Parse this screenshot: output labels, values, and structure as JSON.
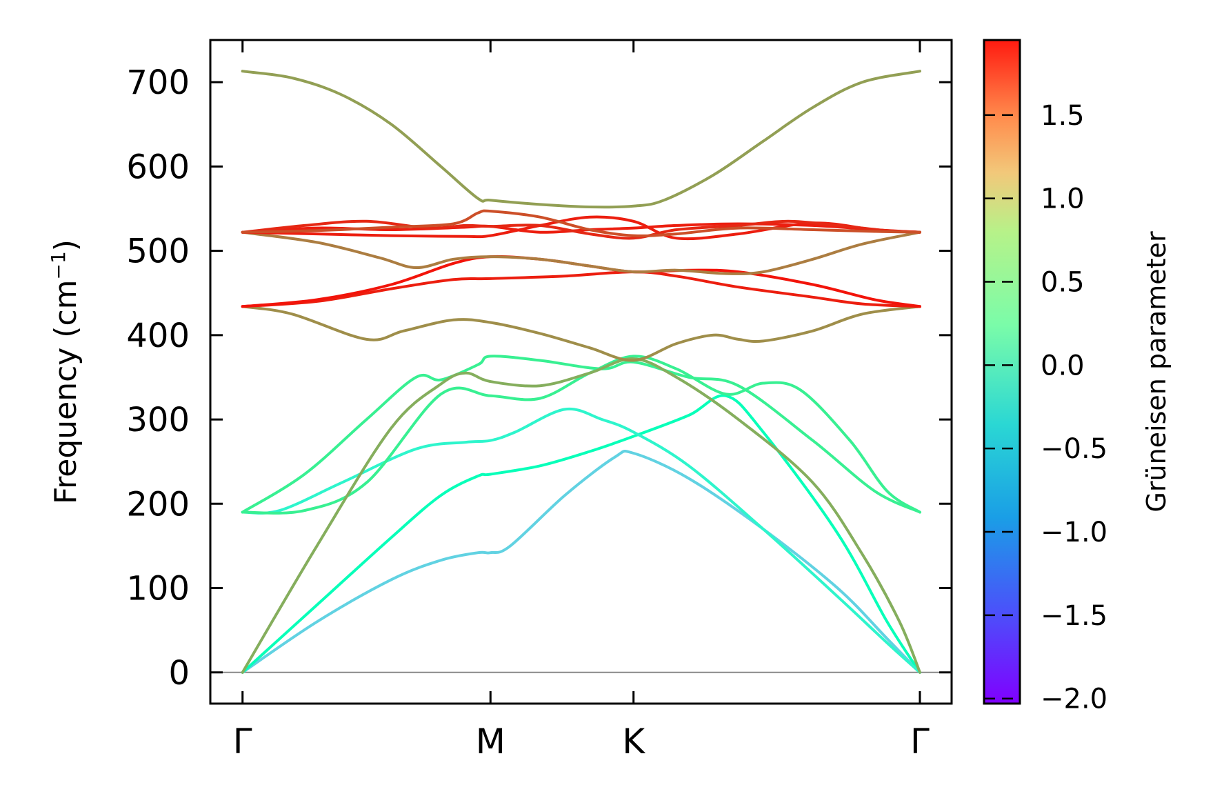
{
  "chart_data": {
    "type": "line",
    "ylabel": "Frequency (cm",
    "ylabel_sup": "−1",
    "ylabel_tail": ")",
    "ylim": [
      -37,
      750
    ],
    "yticks": [
      0,
      100,
      200,
      300,
      400,
      500,
      600,
      700
    ],
    "ytick_labels": [
      "0",
      "100",
      "200",
      "300",
      "400",
      "500",
      "600",
      "700"
    ],
    "xticks": [
      {
        "label": "Γ",
        "x": 0.0
      },
      {
        "label": "M",
        "x": 1.0
      },
      {
        "label": "K",
        "x": 1.577
      },
      {
        "label": "Γ",
        "x": 2.732
      }
    ],
    "xlim": [
      -0.13,
      2.86
    ],
    "zero_line": true,
    "colorbar": {
      "title": "Grüneisen parameter",
      "vmin": -2.03,
      "vmax": 1.95,
      "ticks": [
        -2.0,
        -1.5,
        -1.0,
        -0.5,
        0.0,
        0.5,
        1.0,
        1.5
      ],
      "tick_labels": [
        "−2.0",
        "−1.5",
        "−1.0",
        "−0.5",
        "0.0",
        "0.5",
        "1.0",
        "1.5"
      ],
      "colormap": "rainbow"
    },
    "series": [
      {
        "gamma": -0.8,
        "points": [
          [
            0,
            0
          ],
          [
            0.3,
            60
          ],
          [
            0.6,
            110
          ],
          [
            0.8,
            133
          ],
          [
            0.95,
            142
          ],
          [
            1.0,
            142
          ],
          [
            1.08,
            150
          ],
          [
            1.3,
            210
          ],
          [
            1.5,
            255
          ],
          [
            1.577,
            260
          ],
          [
            1.8,
            230
          ],
          [
            2.1,
            170
          ],
          [
            2.4,
            100
          ],
          [
            2.6,
            40
          ],
          [
            2.732,
            0
          ]
        ]
      },
      {
        "gamma": -0.1,
        "points": [
          [
            0,
            0
          ],
          [
            0.3,
            80
          ],
          [
            0.6,
            160
          ],
          [
            0.8,
            210
          ],
          [
            0.95,
            233
          ],
          [
            1.0,
            235
          ],
          [
            1.2,
            245
          ],
          [
            1.4,
            262
          ],
          [
            1.577,
            280
          ],
          [
            1.8,
            305
          ],
          [
            1.95,
            328
          ],
          [
            2.1,
            285
          ],
          [
            2.4,
            165
          ],
          [
            2.6,
            60
          ],
          [
            2.732,
            0
          ]
        ]
      },
      {
        "gamma": -0.4,
        "points": [
          [
            0,
            190
          ],
          [
            0.15,
            192
          ],
          [
            0.4,
            225
          ],
          [
            0.7,
            265
          ],
          [
            0.9,
            273
          ],
          [
            1.0,
            275
          ],
          [
            1.1,
            285
          ],
          [
            1.3,
            312
          ],
          [
            1.45,
            300
          ],
          [
            1.577,
            285
          ],
          [
            1.8,
            245
          ],
          [
            2.1,
            170
          ],
          [
            2.4,
            90
          ],
          [
            2.6,
            35
          ],
          [
            2.732,
            0
          ]
        ]
      },
      {
        "gamma": 0.4,
        "points": [
          [
            0,
            190
          ],
          [
            0.25,
            235
          ],
          [
            0.5,
            300
          ],
          [
            0.7,
            350
          ],
          [
            0.8,
            347
          ],
          [
            0.95,
            365
          ],
          [
            1.0,
            375
          ],
          [
            1.2,
            370
          ],
          [
            1.45,
            360
          ],
          [
            1.577,
            368
          ],
          [
            1.8,
            350
          ],
          [
            2.0,
            340
          ],
          [
            2.3,
            275
          ],
          [
            2.55,
            215
          ],
          [
            2.732,
            190
          ]
        ]
      },
      {
        "gamma": 0.4,
        "points": [
          [
            0,
            190
          ],
          [
            0.25,
            192
          ],
          [
            0.5,
            225
          ],
          [
            0.8,
            330
          ],
          [
            1.0,
            328
          ],
          [
            1.2,
            325
          ],
          [
            1.4,
            355
          ],
          [
            1.577,
            375
          ],
          [
            1.75,
            360
          ],
          [
            1.95,
            330
          ],
          [
            2.1,
            343
          ],
          [
            2.25,
            335
          ],
          [
            2.45,
            275
          ],
          [
            2.6,
            215
          ],
          [
            2.732,
            190
          ]
        ]
      },
      {
        "gamma": 1.0,
        "points": [
          [
            0,
            0
          ],
          [
            0.3,
            150
          ],
          [
            0.6,
            290
          ],
          [
            0.8,
            342
          ],
          [
            0.9,
            355
          ],
          [
            1.0,
            345
          ],
          [
            1.2,
            340
          ],
          [
            1.4,
            355
          ],
          [
            1.577,
            372
          ],
          [
            1.75,
            350
          ],
          [
            2.0,
            300
          ],
          [
            2.3,
            225
          ],
          [
            2.5,
            140
          ],
          [
            2.65,
            60
          ],
          [
            2.732,
            0
          ]
        ]
      },
      {
        "gamma": 1.2,
        "points": [
          [
            0,
            434
          ],
          [
            0.2,
            425
          ],
          [
            0.5,
            395
          ],
          [
            0.65,
            405
          ],
          [
            0.85,
            418
          ],
          [
            1.0,
            415
          ],
          [
            1.2,
            402
          ],
          [
            1.4,
            385
          ],
          [
            1.577,
            370
          ],
          [
            1.75,
            390
          ],
          [
            1.9,
            400
          ],
          [
            2.0,
            395
          ],
          [
            2.1,
            393
          ],
          [
            2.3,
            405
          ],
          [
            2.5,
            425
          ],
          [
            2.732,
            434
          ]
        ]
      },
      {
        "gamma": 1.8,
        "points": [
          [
            0,
            434
          ],
          [
            0.3,
            440
          ],
          [
            0.6,
            455
          ],
          [
            0.85,
            466
          ],
          [
            1.0,
            467
          ],
          [
            1.3,
            470
          ],
          [
            1.577,
            475
          ],
          [
            1.75,
            470
          ],
          [
            2.0,
            457
          ],
          [
            2.3,
            445
          ],
          [
            2.5,
            437
          ],
          [
            2.732,
            434
          ]
        ]
      },
      {
        "gamma": 1.85,
        "points": [
          [
            0,
            434
          ],
          [
            0.3,
            442
          ],
          [
            0.6,
            460
          ],
          [
            0.85,
            485
          ],
          [
            1.0,
            493
          ],
          [
            1.2,
            490
          ],
          [
            1.4,
            482
          ],
          [
            1.577,
            475
          ],
          [
            1.8,
            477
          ],
          [
            2.0,
            475
          ],
          [
            2.3,
            460
          ],
          [
            2.55,
            442
          ],
          [
            2.732,
            434
          ]
        ]
      },
      {
        "gamma": 1.3,
        "points": [
          [
            0,
            522
          ],
          [
            0.3,
            510
          ],
          [
            0.55,
            492
          ],
          [
            0.7,
            480
          ],
          [
            0.85,
            490
          ],
          [
            1.0,
            493
          ],
          [
            1.2,
            490
          ],
          [
            1.4,
            482
          ],
          [
            1.577,
            475
          ],
          [
            1.75,
            477
          ],
          [
            1.95,
            473
          ],
          [
            2.1,
            475
          ],
          [
            2.3,
            490
          ],
          [
            2.5,
            508
          ],
          [
            2.732,
            522
          ]
        ]
      },
      {
        "gamma": 1.8,
        "points": [
          [
            0,
            522
          ],
          [
            0.3,
            527
          ],
          [
            0.6,
            525
          ],
          [
            0.9,
            528
          ],
          [
            1.0,
            529
          ],
          [
            1.2,
            522
          ],
          [
            1.4,
            525
          ],
          [
            1.577,
            527
          ],
          [
            1.75,
            530
          ],
          [
            2.0,
            532
          ],
          [
            2.3,
            530
          ],
          [
            2.55,
            525
          ],
          [
            2.732,
            522
          ]
        ]
      },
      {
        "gamma": 1.8,
        "points": [
          [
            0,
            522
          ],
          [
            0.3,
            520
          ],
          [
            0.6,
            518
          ],
          [
            0.9,
            517
          ],
          [
            1.0,
            518
          ],
          [
            1.2,
            530
          ],
          [
            1.4,
            540
          ],
          [
            1.577,
            535
          ],
          [
            1.75,
            515
          ],
          [
            2.0,
            520
          ],
          [
            2.3,
            533
          ],
          [
            2.55,
            525
          ],
          [
            2.732,
            522
          ]
        ]
      },
      {
        "gamma": 1.75,
        "points": [
          [
            0,
            522
          ],
          [
            0.25,
            530
          ],
          [
            0.5,
            535
          ],
          [
            0.75,
            527
          ],
          [
            0.9,
            530
          ],
          [
            1.0,
            529
          ],
          [
            1.2,
            530
          ],
          [
            1.4,
            520
          ],
          [
            1.577,
            515
          ],
          [
            1.75,
            525
          ],
          [
            2.0,
            530
          ],
          [
            2.2,
            535
          ],
          [
            2.4,
            530
          ],
          [
            2.6,
            524
          ],
          [
            2.732,
            522
          ]
        ]
      },
      {
        "gamma": 1.55,
        "points": [
          [
            0,
            522
          ],
          [
            0.3,
            524
          ],
          [
            0.6,
            528
          ],
          [
            0.85,
            532
          ],
          [
            0.95,
            545
          ],
          [
            1.0,
            547
          ],
          [
            1.2,
            540
          ],
          [
            1.4,
            525
          ],
          [
            1.577,
            518
          ],
          [
            1.75,
            520
          ],
          [
            2.0,
            527
          ],
          [
            2.3,
            525
          ],
          [
            2.55,
            523
          ],
          [
            2.732,
            522
          ]
        ]
      },
      {
        "gamma": 1.1,
        "points": [
          [
            0,
            713
          ],
          [
            0.2,
            705
          ],
          [
            0.4,
            685
          ],
          [
            0.6,
            650
          ],
          [
            0.8,
            600
          ],
          [
            0.95,
            562
          ],
          [
            1.0,
            560
          ],
          [
            1.2,
            555
          ],
          [
            1.4,
            552
          ],
          [
            1.577,
            553
          ],
          [
            1.7,
            560
          ],
          [
            1.9,
            590
          ],
          [
            2.1,
            630
          ],
          [
            2.3,
            670
          ],
          [
            2.5,
            700
          ],
          [
            2.732,
            713
          ]
        ]
      }
    ]
  }
}
